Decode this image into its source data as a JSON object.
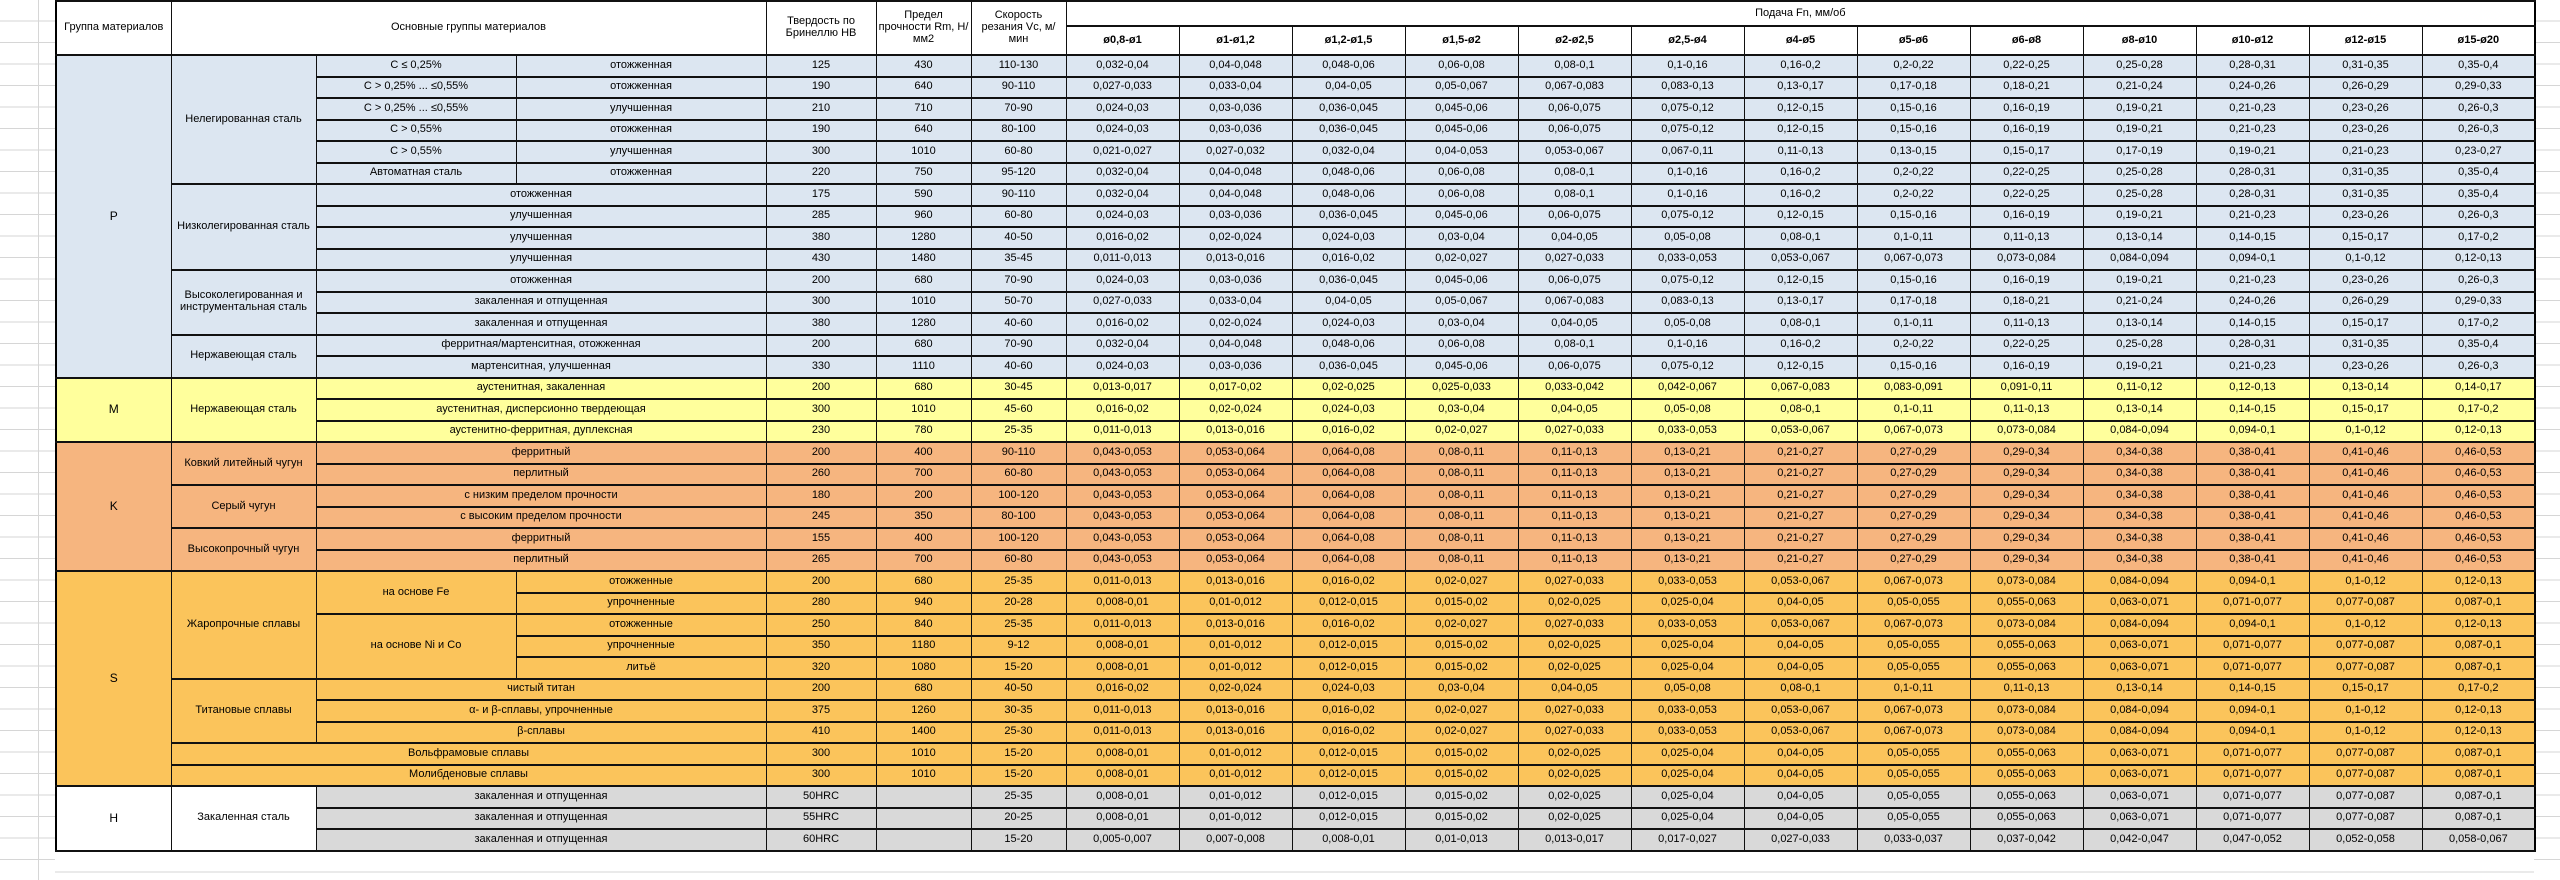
{
  "header": {
    "col_group": "Группа материалов",
    "col_main_groups": "Основные группы материалов",
    "col_hardness": "Твердость по Бринеллю HB",
    "col_strength": "Предел прочности Rm, Н/мм2",
    "col_speed": "Скорость резания Vc, м/мин",
    "feed_title": "Подача Fn, мм/об",
    "feed_cols": [
      "ø0,8-ø1",
      "ø1-ø1,2",
      "ø1,2-ø1,5",
      "ø1,5-ø2",
      "ø2-ø2,5",
      "ø2,5-ø4",
      "ø4-ø5",
      "ø5-ø6",
      "ø6-ø8",
      "ø8-ø10",
      "ø10-ø12",
      "ø12-ø15",
      "ø15-ø20"
    ]
  },
  "feed_patterns": {
    "A": [
      "0,032-0,04",
      "0,04-0,048",
      "0,048-0,06",
      "0,06-0,08",
      "0,08-0,1",
      "0,1-0,16",
      "0,16-0,2",
      "0,2-0,22",
      "0,22-0,25",
      "0,25-0,28",
      "0,28-0,31",
      "0,31-0,35",
      "0,35-0,4"
    ],
    "B": [
      "0,027-0,033",
      "0,033-0,04",
      "0,04-0,05",
      "0,05-0,067",
      "0,067-0,083",
      "0,083-0,13",
      "0,13-0,17",
      "0,17-0,18",
      "0,18-0,21",
      "0,21-0,24",
      "0,24-0,26",
      "0,26-0,29",
      "0,29-0,33"
    ],
    "C": [
      "0,024-0,03",
      "0,03-0,036",
      "0,036-0,045",
      "0,045-0,06",
      "0,06-0,075",
      "0,075-0,12",
      "0,12-0,15",
      "0,15-0,16",
      "0,16-0,19",
      "0,19-0,21",
      "0,21-0,23",
      "0,23-0,26",
      "0,26-0,3"
    ],
    "D": [
      "0,021-0,027",
      "0,027-0,032",
      "0,032-0,04",
      "0,04-0,053",
      "0,053-0,067",
      "0,067-0,11",
      "0,11-0,13",
      "0,13-0,15",
      "0,15-0,17",
      "0,17-0,19",
      "0,19-0,21",
      "0,21-0,23",
      "0,23-0,27"
    ],
    "E": [
      "0,016-0,02",
      "0,02-0,024",
      "0,024-0,03",
      "0,03-0,04",
      "0,04-0,05",
      "0,05-0,08",
      "0,08-0,1",
      "0,1-0,11",
      "0,11-0,13",
      "0,13-0,14",
      "0,14-0,15",
      "0,15-0,17",
      "0,17-0,2"
    ],
    "F": [
      "0,011-0,013",
      "0,013-0,016",
      "0,016-0,02",
      "0,02-0,027",
      "0,027-0,033",
      "0,033-0,053",
      "0,053-0,067",
      "0,067-0,073",
      "0,073-0,084",
      "0,084-0,094",
      "0,094-0,1",
      "0,1-0,12",
      "0,12-0,13"
    ],
    "G": [
      "0,013-0,017",
      "0,017-0,02",
      "0,02-0,025",
      "0,025-0,033",
      "0,033-0,042",
      "0,042-0,067",
      "0,067-0,083",
      "0,083-0,091",
      "0,091-0,11",
      "0,11-0,12",
      "0,12-0,13",
      "0,13-0,14",
      "0,14-0,17"
    ],
    "H": [
      "0,043-0,053",
      "0,053-0,064",
      "0,064-0,08",
      "0,08-0,11",
      "0,11-0,13",
      "0,13-0,21",
      "0,21-0,27",
      "0,27-0,29",
      "0,29-0,34",
      "0,34-0,38",
      "0,38-0,41",
      "0,41-0,46",
      "0,46-0,53"
    ],
    "I": [
      "0,008-0,01",
      "0,01-0,012",
      "0,012-0,015",
      "0,015-0,02",
      "0,02-0,025",
      "0,025-0,04",
      "0,04-0,05",
      "0,05-0,055",
      "0,055-0,063",
      "0,063-0,071",
      "0,071-0,077",
      "0,077-0,087",
      "0,087-0,1"
    ],
    "J": [
      "0,005-0,007",
      "0,007-0,008",
      "0,008-0,01",
      "0,01-0,013",
      "0,013-0,017",
      "0,017-0,027",
      "0,027-0,033",
      "0,033-0,037",
      "0,037-0,042",
      "0,042-0,047",
      "0,047-0,052",
      "0,052-0,058",
      "0,058-0,067"
    ]
  },
  "rows": [
    {
      "g": "p",
      "cells": [
        {
          "t": "P",
          "rs": 15,
          "n": "group-code"
        },
        {
          "t": "Нелегированная сталь",
          "rs": 6,
          "n": "material-group"
        },
        {
          "t": "C ≤ 0,25%",
          "n": "material-sub"
        },
        {
          "t": "отожженная",
          "n": "treatment"
        }
      ],
      "hb": "125",
      "rm": "430",
      "vc": "110-130",
      "fp": "A"
    },
    {
      "cells": [
        {
          "t": "C > 0,25% ... ≤0,55%",
          "n": "material-sub"
        },
        {
          "t": "отожженная",
          "n": "treatment"
        }
      ],
      "hb": "190",
      "rm": "640",
      "vc": "90-110",
      "fp": "B"
    },
    {
      "cells": [
        {
          "t": "C > 0,25% ... ≤0,55%",
          "n": "material-sub"
        },
        {
          "t": "улучшенная",
          "n": "treatment"
        }
      ],
      "hb": "210",
      "rm": "710",
      "vc": "70-90",
      "fp": "C"
    },
    {
      "cells": [
        {
          "t": "C > 0,55%",
          "n": "material-sub"
        },
        {
          "t": "отожженная",
          "n": "treatment"
        }
      ],
      "hb": "190",
      "rm": "640",
      "vc": "80-100",
      "fp": "C"
    },
    {
      "cells": [
        {
          "t": "C > 0,55%",
          "n": "material-sub"
        },
        {
          "t": "улучшенная",
          "n": "treatment"
        }
      ],
      "hb": "300",
      "rm": "1010",
      "vc": "60-80",
      "fp": "D"
    },
    {
      "cells": [
        {
          "t": "Автоматная сталь",
          "n": "material-sub"
        },
        {
          "t": "отожженная",
          "n": "treatment"
        }
      ],
      "hb": "220",
      "rm": "750",
      "vc": "95-120",
      "fp": "A"
    },
    {
      "cells": [
        {
          "t": "Низколегированная сталь",
          "rs": 4,
          "n": "material-group"
        },
        {
          "t": "отожженная",
          "cs": 2,
          "n": "treatment"
        }
      ],
      "hb": "175",
      "rm": "590",
      "vc": "90-110",
      "fp": "A"
    },
    {
      "cells": [
        {
          "t": "улучшенная",
          "cs": 2,
          "n": "treatment"
        }
      ],
      "hb": "285",
      "rm": "960",
      "vc": "60-80",
      "fp": "C"
    },
    {
      "cells": [
        {
          "t": "улучшенная",
          "cs": 2,
          "n": "treatment"
        }
      ],
      "hb": "380",
      "rm": "1280",
      "vc": "40-50",
      "fp": "E"
    },
    {
      "cells": [
        {
          "t": "улучшенная",
          "cs": 2,
          "n": "treatment"
        }
      ],
      "hb": "430",
      "rm": "1480",
      "vc": "35-45",
      "fp": "F"
    },
    {
      "cells": [
        {
          "t": "Высоколегированная и инструментальная сталь",
          "rs": 3,
          "n": "material-group"
        },
        {
          "t": "отожженная",
          "cs": 2,
          "n": "treatment"
        }
      ],
      "hb": "200",
      "rm": "680",
      "vc": "70-90",
      "fp": "C"
    },
    {
      "cells": [
        {
          "t": "закаленная и отпущенная",
          "cs": 2,
          "n": "treatment"
        }
      ],
      "hb": "300",
      "rm": "1010",
      "vc": "50-70",
      "fp": "B"
    },
    {
      "cells": [
        {
          "t": "закаленная и отпущенная",
          "cs": 2,
          "n": "treatment"
        }
      ],
      "hb": "380",
      "rm": "1280",
      "vc": "40-60",
      "fp": "E"
    },
    {
      "cells": [
        {
          "t": "Нержавеющая сталь",
          "rs": 2,
          "n": "material-group"
        },
        {
          "t": "ферритная/мартенситная, отожженная",
          "cs": 2,
          "n": "treatment"
        }
      ],
      "hb": "200",
      "rm": "680",
      "vc": "70-90",
      "fp": "A"
    },
    {
      "cells": [
        {
          "t": "мартенситная, улучшенная",
          "cs": 2,
          "n": "treatment"
        }
      ],
      "hb": "330",
      "rm": "1110",
      "vc": "40-60",
      "fp": "C"
    },
    {
      "g": "m",
      "cells": [
        {
          "t": "M",
          "rs": 3,
          "n": "group-code"
        },
        {
          "t": "Нержавеющая сталь",
          "rs": 3,
          "n": "material-group"
        },
        {
          "t": "аустенитная, закаленная",
          "cs": 2,
          "n": "treatment"
        }
      ],
      "hb": "200",
      "rm": "680",
      "vc": "30-45",
      "fp": "G"
    },
    {
      "cells": [
        {
          "t": "аустенитная, дисперсионно твердеющая",
          "cs": 2,
          "n": "treatment"
        }
      ],
      "hb": "300",
      "rm": "1010",
      "vc": "45-60",
      "fp": "E"
    },
    {
      "cells": [
        {
          "t": "аустенитно-ферритная, дуплексная",
          "cs": 2,
          "n": "treatment"
        }
      ],
      "hb": "230",
      "rm": "780",
      "vc": "25-35",
      "fp": "F"
    },
    {
      "g": "k",
      "cells": [
        {
          "t": "K",
          "rs": 6,
          "n": "group-code"
        },
        {
          "t": "Ковкий литейный чугун",
          "rs": 2,
          "n": "material-group"
        },
        {
          "t": "ферритный",
          "cs": 2,
          "n": "treatment"
        }
      ],
      "hb": "200",
      "rm": "400",
      "vc": "90-110",
      "fp": "H"
    },
    {
      "cells": [
        {
          "t": "перлитный",
          "cs": 2,
          "n": "treatment"
        }
      ],
      "hb": "260",
      "rm": "700",
      "vc": "60-80",
      "fp": "H"
    },
    {
      "cells": [
        {
          "t": "Серый чугун",
          "rs": 2,
          "n": "material-group"
        },
        {
          "t": "с низким пределом прочности",
          "cs": 2,
          "n": "treatment"
        }
      ],
      "hb": "180",
      "rm": "200",
      "vc": "100-120",
      "fp": "H"
    },
    {
      "cells": [
        {
          "t": "с высоким пределом прочности",
          "cs": 2,
          "n": "treatment"
        }
      ],
      "hb": "245",
      "rm": "350",
      "vc": "80-100",
      "fp": "H"
    },
    {
      "cells": [
        {
          "t": "Высокопрочный чугун",
          "rs": 2,
          "n": "material-group"
        },
        {
          "t": "ферритный",
          "cs": 2,
          "n": "treatment"
        }
      ],
      "hb": "155",
      "rm": "400",
      "vc": "100-120",
      "fp": "H"
    },
    {
      "cells": [
        {
          "t": "перлитный",
          "cs": 2,
          "n": "treatment"
        }
      ],
      "hb": "265",
      "rm": "700",
      "vc": "60-80",
      "fp": "H"
    },
    {
      "g": "s",
      "cells": [
        {
          "t": "S",
          "rs": 10,
          "n": "group-code"
        },
        {
          "t": "Жаропрочные сплавы",
          "rs": 5,
          "n": "material-group"
        },
        {
          "t": "на основе Fe",
          "rs": 2,
          "n": "material-sub"
        },
        {
          "t": "отожженные",
          "n": "treatment"
        }
      ],
      "hb": "200",
      "rm": "680",
      "vc": "25-35",
      "fp": "F"
    },
    {
      "cells": [
        {
          "t": "упрочненные",
          "n": "treatment"
        }
      ],
      "hb": "280",
      "rm": "940",
      "vc": "20-28",
      "fp": "I"
    },
    {
      "cells": [
        {
          "t": "на основе Ni и Co",
          "rs": 3,
          "n": "material-sub"
        },
        {
          "t": "отожженные",
          "n": "treatment"
        }
      ],
      "hb": "250",
      "rm": "840",
      "vc": "25-35",
      "fp": "F"
    },
    {
      "cells": [
        {
          "t": "упрочненные",
          "n": "treatment"
        }
      ],
      "hb": "350",
      "rm": "1180",
      "vc": "9-12",
      "fp": "I"
    },
    {
      "cells": [
        {
          "t": "литьё",
          "n": "treatment"
        }
      ],
      "hb": "320",
      "rm": "1080",
      "vc": "15-20",
      "fp": "I"
    },
    {
      "cells": [
        {
          "t": "Титановые сплавы",
          "rs": 3,
          "n": "material-group"
        },
        {
          "t": "чистый титан",
          "cs": 2,
          "n": "treatment"
        }
      ],
      "hb": "200",
      "rm": "680",
      "vc": "40-50",
      "fp": "E"
    },
    {
      "cells": [
        {
          "t": "α- и β-сплавы, упрочненные",
          "cs": 2,
          "n": "treatment"
        }
      ],
      "hb": "375",
      "rm": "1260",
      "vc": "30-35",
      "fp": "F"
    },
    {
      "cells": [
        {
          "t": "β-сплавы",
          "cs": 2,
          "n": "treatment"
        }
      ],
      "hb": "410",
      "rm": "1400",
      "vc": "25-30",
      "fp": "F"
    },
    {
      "cells": [
        {
          "t": "Вольфрамовые сплавы",
          "cs": 3,
          "n": "material-group"
        }
      ],
      "hb": "300",
      "rm": "1010",
      "vc": "15-20",
      "fp": "I"
    },
    {
      "cells": [
        {
          "t": "Молибденовые сплавы",
          "cs": 3,
          "n": "material-group"
        }
      ],
      "hb": "300",
      "rm": "1010",
      "vc": "15-20",
      "fp": "I"
    },
    {
      "g": "h",
      "cells": [
        {
          "t": "H",
          "rs": 3,
          "n": "group-code",
          "w": 1
        },
        {
          "t": "Закаленная сталь",
          "rs": 3,
          "n": "material-group",
          "w": 1
        },
        {
          "t": "закаленная и отпущенная",
          "cs": 2,
          "n": "treatment"
        }
      ],
      "hb": "50HRC",
      "rm": "",
      "vc": "25-35",
      "fp": "I"
    },
    {
      "cells": [
        {
          "t": "закаленная и отпущенная",
          "cs": 2,
          "n": "treatment"
        }
      ],
      "hb": "55HRC",
      "rm": "",
      "vc": "20-25",
      "fp": "I"
    },
    {
      "cells": [
        {
          "t": "закаленная и отпущенная",
          "cs": 2,
          "n": "treatment"
        }
      ],
      "hb": "60HRC",
      "rm": "",
      "vc": "15-20",
      "fp": "J"
    }
  ]
}
